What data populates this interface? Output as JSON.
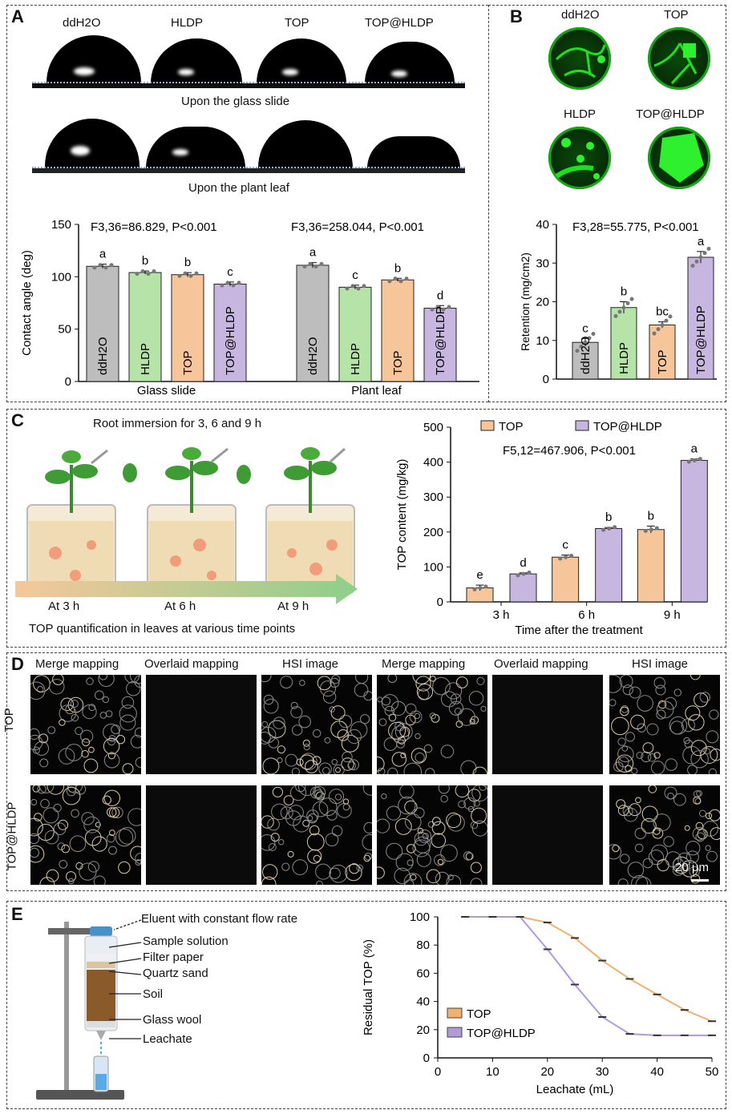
{
  "panel_A": {
    "label": "A",
    "droplet_labels": [
      "ddH2O",
      "HLDP",
      "TOP",
      "TOP@HLDP"
    ],
    "caption_glass": "Upon the glass slide",
    "caption_leaf": "Upon the plant leaf",
    "stat_glass": "F3,36=86.829, P<0.001",
    "stat_leaf": "F3,36=258.044, P<0.001"
  },
  "panel_B": {
    "label": "B",
    "image_labels": [
      "ddH2O",
      "TOP",
      "HLDP",
      "TOP@HLDP"
    ],
    "stat": "F3,28=55.775, P<0.001"
  },
  "panel_C": {
    "label": "C",
    "title": "Root immersion for 3, 6 and 9 h",
    "time_labels": [
      "At 3 h",
      "At 6 h",
      "At 9 h"
    ],
    "caption": "TOP quantification in leaves at various time points",
    "stat": "F5,12=467.906, P<0.001"
  },
  "panel_D": {
    "label": "D",
    "column_headers": [
      "Merge mapping",
      "Overlaid mapping",
      "HSI image",
      "Merge mapping",
      "Overlaid mapping",
      "HSI image"
    ],
    "row_labels": [
      "TOP",
      "TOP@HLDP"
    ],
    "scale_bar": "20 μm"
  },
  "panel_E": {
    "label": "E",
    "diagram_labels": [
      "Eluent with constant flow rate",
      "Sample solution",
      "Filter paper",
      "Quartz sand",
      "Soil",
      "Glass wool",
      "Leachate"
    ]
  },
  "chart_data": [
    {
      "id": "A-contact-angle",
      "type": "bar",
      "ylabel": "Contact angle (deg)",
      "ylim": [
        0,
        150
      ],
      "yticks": [
        0,
        50,
        100,
        150
      ],
      "groups": [
        "Glass slide",
        "Plant leaf"
      ],
      "categories": [
        "ddH2O",
        "HLDP",
        "TOP",
        "TOP@HLDP"
      ],
      "colors": [
        "#bdbdbd",
        "#b6e3a8",
        "#f7c59a",
        "#c7b6e0"
      ],
      "series": [
        {
          "name": "Glass slide",
          "values": [
            110,
            104,
            102,
            93
          ],
          "errors": [
            2,
            1.5,
            2,
            2
          ],
          "letters": [
            "a",
            "b",
            "b",
            "c"
          ]
        },
        {
          "name": "Plant leaf",
          "values": [
            111,
            90,
            97,
            70
          ],
          "errors": [
            2.5,
            2,
            1.5,
            2.5
          ],
          "letters": [
            "a",
            "c",
            "b",
            "d"
          ]
        }
      ]
    },
    {
      "id": "B-retention",
      "type": "bar",
      "ylabel": "Retention (mg/cm2)",
      "ylim": [
        0,
        40
      ],
      "yticks": [
        0,
        10,
        20,
        30,
        40
      ],
      "categories": [
        "ddH2O",
        "HLDP",
        "TOP",
        "TOP@HLDP"
      ],
      "colors": [
        "#bdbdbd",
        "#b6e3a8",
        "#f7c59a",
        "#c7b6e0"
      ],
      "values": [
        9.5,
        18.5,
        14,
        31.5
      ],
      "errors": [
        1,
        1.5,
        0.8,
        1.5
      ],
      "letters": [
        "c",
        "b",
        "bc",
        "a"
      ]
    },
    {
      "id": "C-top-content",
      "type": "bar",
      "ylabel": "TOP content (mg/kg)",
      "xlabel": "Time after the treatment",
      "ylim": [
        0,
        500
      ],
      "yticks": [
        0,
        100,
        200,
        300,
        400,
        500
      ],
      "categories": [
        "3 h",
        "6 h",
        "9 h"
      ],
      "legend": [
        "TOP",
        "TOP@HLDP"
      ],
      "series": [
        {
          "name": "TOP",
          "color": "#f7c59a",
          "values": [
            40,
            128,
            207
          ],
          "errors": [
            8,
            6,
            10
          ],
          "letters": [
            "e",
            "c",
            "b"
          ]
        },
        {
          "name": "TOP@HLDP",
          "color": "#c7b6e0",
          "values": [
            80,
            210,
            405
          ],
          "errors": [
            3,
            3,
            4
          ],
          "letters": [
            "d",
            "b",
            "a"
          ]
        }
      ]
    },
    {
      "id": "E-residual",
      "type": "line",
      "ylabel": "Residual TOP (%)",
      "xlabel": "Leachate (mL)",
      "xlim": [
        0,
        50
      ],
      "ylim": [
        0,
        100
      ],
      "xticks": [
        0,
        10,
        20,
        30,
        40,
        50
      ],
      "yticks": [
        0,
        20,
        40,
        60,
        80,
        100
      ],
      "series": [
        {
          "name": "TOP",
          "color": "#f0b070",
          "x": [
            5,
            10,
            15,
            20,
            25,
            30,
            35,
            40,
            45,
            50
          ],
          "y": [
            100,
            100,
            100,
            96,
            85,
            69,
            56,
            45,
            34,
            26
          ]
        },
        {
          "name": "TOP@HLDP",
          "color": "#b09ad8",
          "x": [
            5,
            10,
            15,
            20,
            25,
            30,
            35,
            40,
            45,
            50
          ],
          "y": [
            100,
            100,
            100,
            77,
            52,
            29,
            17,
            16,
            16,
            16
          ]
        }
      ]
    }
  ]
}
